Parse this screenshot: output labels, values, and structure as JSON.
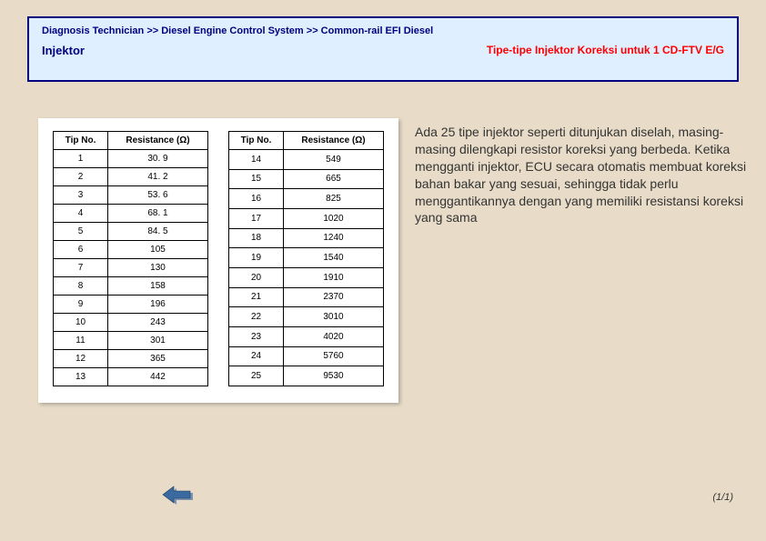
{
  "header": {
    "breadcrumb": "Diagnosis Technician >> Diesel Engine Control System >> Common-rail EFI Diesel",
    "section_title": "Injektor",
    "subtitle": "Tipe-tipe Injektor Koreksi untuk 1 CD-FTV E/G"
  },
  "tables": {
    "col_tip": "Tip No.",
    "col_res": "Resistance (Ω)",
    "left": {
      "rows": [
        {
          "n": "1",
          "r": "30. 9"
        },
        {
          "n": "2",
          "r": "41. 2"
        },
        {
          "n": "3",
          "r": "53. 6"
        },
        {
          "n": "4",
          "r": "68. 1"
        },
        {
          "n": "5",
          "r": "84. 5"
        },
        {
          "n": "6",
          "r": "105"
        },
        {
          "n": "7",
          "r": "130"
        },
        {
          "n": "8",
          "r": "158"
        },
        {
          "n": "9",
          "r": "196"
        },
        {
          "n": "10",
          "r": "243"
        },
        {
          "n": "11",
          "r": "301"
        },
        {
          "n": "12",
          "r": "365"
        },
        {
          "n": "13",
          "r": "442"
        }
      ]
    },
    "right": {
      "rows": [
        {
          "n": "14",
          "r": "549"
        },
        {
          "n": "15",
          "r": "665"
        },
        {
          "n": "16",
          "r": "825"
        },
        {
          "n": "17",
          "r": "1020"
        },
        {
          "n": "18",
          "r": "1240"
        },
        {
          "n": "19",
          "r": "1540"
        },
        {
          "n": "20",
          "r": "1910"
        },
        {
          "n": "21",
          "r": "2370"
        },
        {
          "n": "22",
          "r": "3010"
        },
        {
          "n": "23",
          "r": "4020"
        },
        {
          "n": "24",
          "r": "5760"
        },
        {
          "n": "25",
          "r": "9530"
        }
      ]
    }
  },
  "description": "Ada 25 tipe injektor seperti ditunjukan diselah, masing-masing dilengkapi resistor koreksi yang berbeda. Ketika mengganti injektor, ECU secara otomatis membuat koreksi bahan bakar yang sesuai, sehingga tidak perlu menggantikannya dengan yang memiliki resistansi koreksi yang sama",
  "page_indicator": "(1/1)",
  "styling": {
    "page_bg": "#e8dcc8",
    "header_bg": "#e0efff",
    "header_border": "#000080",
    "breadcrumb_color": "#000080",
    "subtitle_color": "#ff0000",
    "table_panel_bg": "#ffffff",
    "cell_border": "#000000",
    "desc_color": "#333333",
    "arrow_fill": "#3a6aa0",
    "arrow_shadow": "#7a93b0"
  }
}
